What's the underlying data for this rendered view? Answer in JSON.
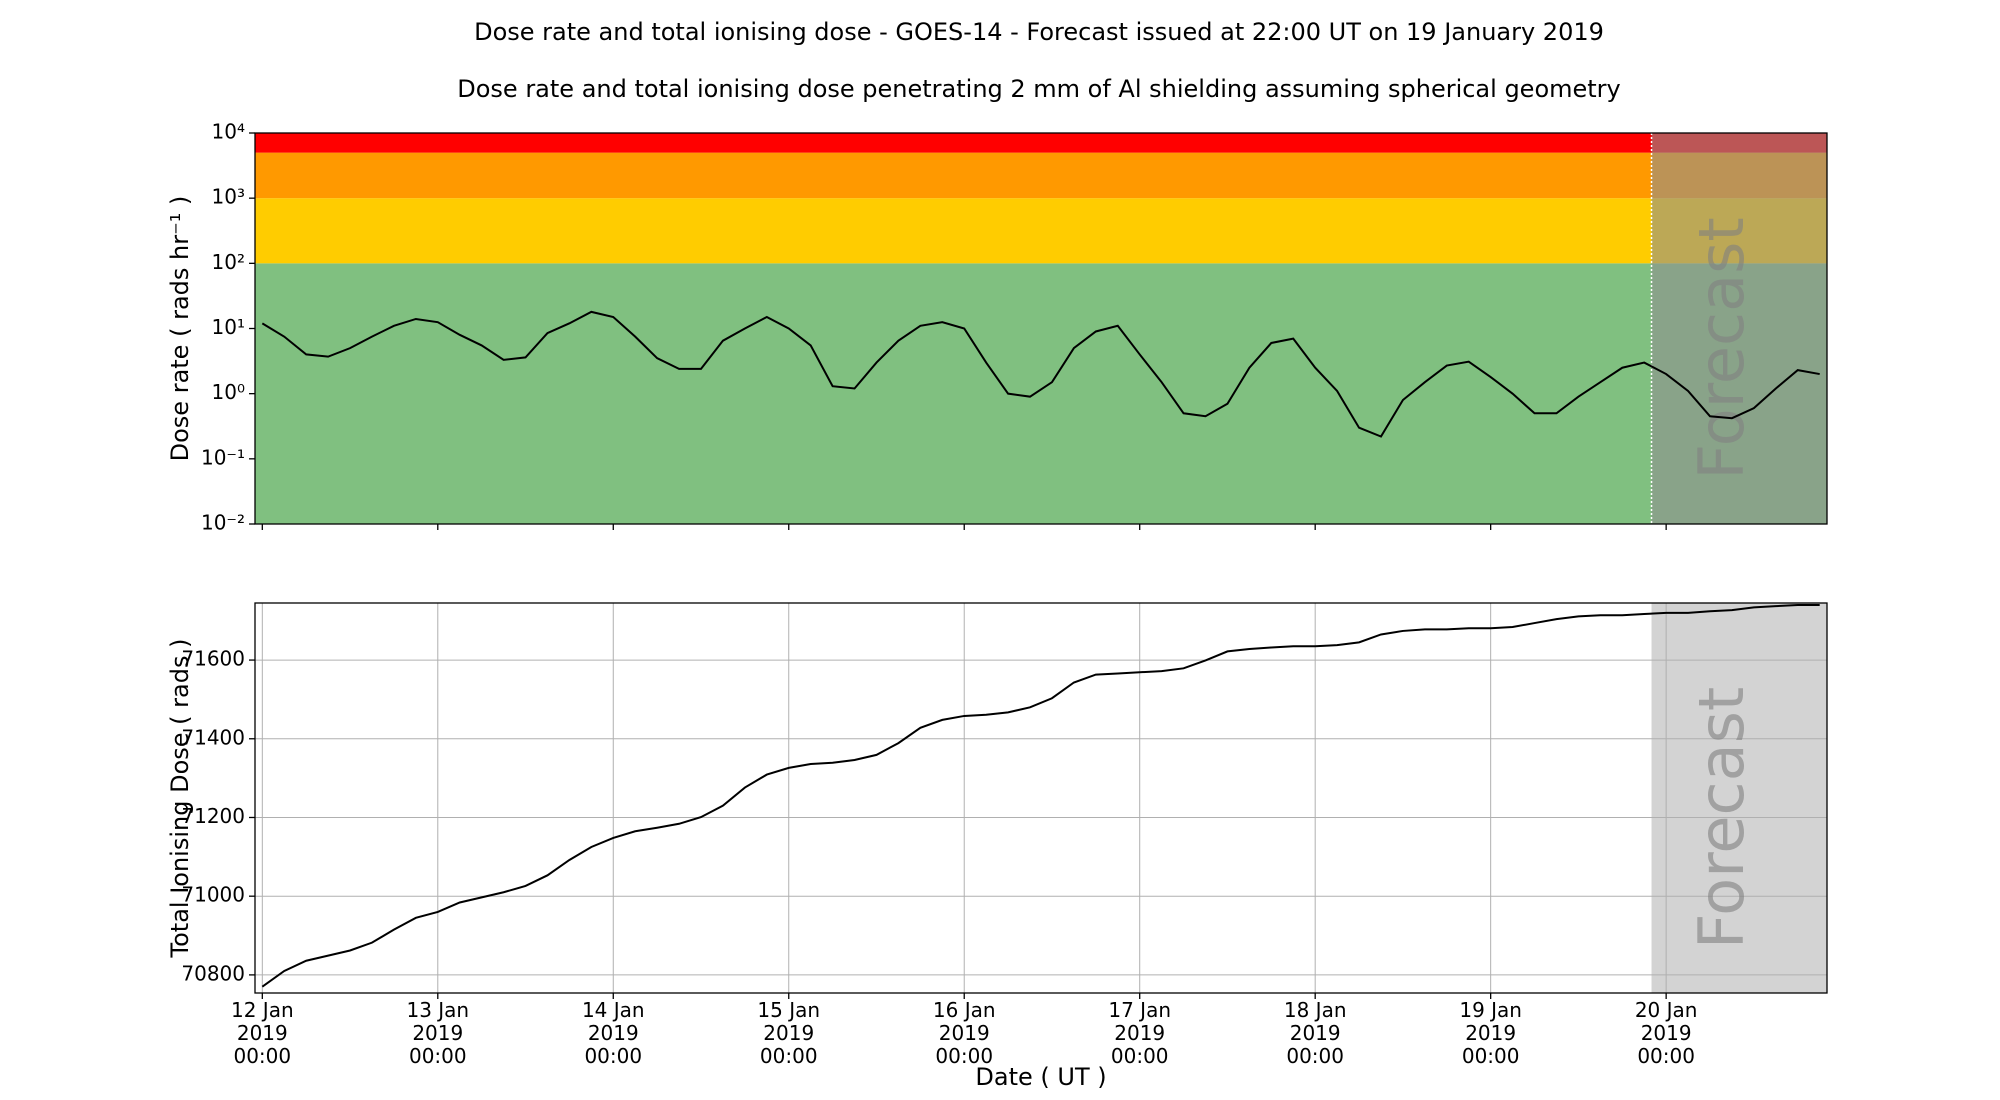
{
  "title": "Dose rate and total ionising dose - GOES-14 - Forecast issued at 22:00 UT on 19 January 2019",
  "subtitle": "Dose rate and total ionising dose penetrating 2 mm of Al shielding assuming spherical geometry",
  "chart_data": [
    {
      "type": "line",
      "y_label": "Dose rate ( rads hr⁻¹ )",
      "log_y": true,
      "color": "#000000",
      "xlim": [
        "2019-01-11T23:00",
        "2019-01-20T22:00"
      ],
      "ylim": [
        0.01,
        10000
      ],
      "yticks": [
        {
          "value": 0.01,
          "label": "10⁻²"
        },
        {
          "value": 0.1,
          "label": "10⁻¹"
        },
        {
          "value": 1,
          "label": "10⁰"
        },
        {
          "value": 10,
          "label": "10¹"
        },
        {
          "value": 100,
          "label": "10²"
        },
        {
          "value": 1000,
          "label": "10³"
        },
        {
          "value": 10000,
          "label": "10⁴"
        }
      ],
      "xticks": [
        "2019-01-12T00:00",
        "2019-01-13T00:00",
        "2019-01-14T00:00",
        "2019-01-15T00:00",
        "2019-01-16T00:00",
        "2019-01-17T00:00",
        "2019-01-18T00:00",
        "2019-01-19T00:00",
        "2019-01-20T00:00"
      ],
      "bands": [
        {
          "from": 0.01,
          "to": 100,
          "color": "#80c080"
        },
        {
          "from": 100,
          "to": 1000,
          "color": "#ffcc00"
        },
        {
          "from": 1000,
          "to": 5000,
          "color": "#ff9900"
        },
        {
          "from": 5000,
          "to": 10000,
          "color": "#ff0000"
        }
      ],
      "forecast": {
        "start": "2019-01-19T22:00",
        "label": "Forecast",
        "color": "#909090"
      },
      "x": [
        "2019-01-12T00:00",
        "2019-01-12T03:00",
        "2019-01-12T06:00",
        "2019-01-12T09:00",
        "2019-01-12T12:00",
        "2019-01-12T15:00",
        "2019-01-12T18:00",
        "2019-01-12T21:00",
        "2019-01-13T00:00",
        "2019-01-13T03:00",
        "2019-01-13T06:00",
        "2019-01-13T09:00",
        "2019-01-13T12:00",
        "2019-01-13T15:00",
        "2019-01-13T18:00",
        "2019-01-13T21:00",
        "2019-01-14T00:00",
        "2019-01-14T03:00",
        "2019-01-14T06:00",
        "2019-01-14T09:00",
        "2019-01-14T12:00",
        "2019-01-14T15:00",
        "2019-01-14T18:00",
        "2019-01-14T21:00",
        "2019-01-15T00:00",
        "2019-01-15T03:00",
        "2019-01-15T06:00",
        "2019-01-15T09:00",
        "2019-01-15T12:00",
        "2019-01-15T15:00",
        "2019-01-15T18:00",
        "2019-01-15T21:00",
        "2019-01-16T00:00",
        "2019-01-16T03:00",
        "2019-01-16T06:00",
        "2019-01-16T09:00",
        "2019-01-16T12:00",
        "2019-01-16T15:00",
        "2019-01-16T18:00",
        "2019-01-16T21:00",
        "2019-01-17T00:00",
        "2019-01-17T03:00",
        "2019-01-17T06:00",
        "2019-01-17T09:00",
        "2019-01-17T12:00",
        "2019-01-17T15:00",
        "2019-01-17T18:00",
        "2019-01-17T21:00",
        "2019-01-18T00:00",
        "2019-01-18T03:00",
        "2019-01-18T06:00",
        "2019-01-18T09:00",
        "2019-01-18T12:00",
        "2019-01-18T15:00",
        "2019-01-18T18:00",
        "2019-01-18T21:00",
        "2019-01-19T00:00",
        "2019-01-19T03:00",
        "2019-01-19T06:00",
        "2019-01-19T09:00",
        "2019-01-19T12:00",
        "2019-01-19T15:00",
        "2019-01-19T18:00",
        "2019-01-19T21:00",
        "2019-01-20T00:00",
        "2019-01-20T03:00",
        "2019-01-20T06:00",
        "2019-01-20T09:00",
        "2019-01-20T12:00",
        "2019-01-20T15:00",
        "2019-01-20T18:00",
        "2019-01-20T21:00"
      ],
      "values": [
        12,
        7.5,
        4,
        3.7,
        5,
        7.5,
        11,
        14,
        12.5,
        8,
        5.5,
        3.3,
        3.6,
        8.5,
        12,
        18,
        15,
        7.5,
        3.5,
        2.4,
        2.4,
        6.5,
        10,
        15,
        10,
        5.5,
        1.3,
        1.2,
        3,
        6.5,
        11,
        12.5,
        10,
        3,
        1.0,
        0.9,
        1.5,
        5,
        9,
        11,
        4,
        1.5,
        0.5,
        0.45,
        0.7,
        2.5,
        6,
        7,
        2.5,
        1.1,
        0.3,
        0.22,
        0.8,
        1.5,
        2.7,
        3.1,
        1.8,
        1.0,
        0.5,
        0.5,
        0.9,
        1.5,
        2.5,
        3,
        2,
        1.1,
        0.45,
        0.42,
        0.6,
        1.2,
        2.3,
        2.0
      ]
    },
    {
      "type": "line",
      "y_label": "Total Ionising Dose ( rads )",
      "x_label": "Date ( UT )",
      "grid": true,
      "color": "#000000",
      "xlim": [
        "2019-01-11T23:00",
        "2019-01-20T22:00"
      ],
      "ylim": [
        70754,
        71745
      ],
      "yticks": [
        70800,
        71000,
        71200,
        71400,
        71600
      ],
      "xticks": [
        {
          "value": "2019-01-12T00:00",
          "label": [
            "12 Jan",
            "2019",
            "00:00"
          ]
        },
        {
          "value": "2019-01-13T00:00",
          "label": [
            "13 Jan",
            "2019",
            "00:00"
          ]
        },
        {
          "value": "2019-01-14T00:00",
          "label": [
            "14 Jan",
            "2019",
            "00:00"
          ]
        },
        {
          "value": "2019-01-15T00:00",
          "label": [
            "15 Jan",
            "2019",
            "00:00"
          ]
        },
        {
          "value": "2019-01-16T00:00",
          "label": [
            "16 Jan",
            "2019",
            "00:00"
          ]
        },
        {
          "value": "2019-01-17T00:00",
          "label": [
            "17 Jan",
            "2019",
            "00:00"
          ]
        },
        {
          "value": "2019-01-18T00:00",
          "label": [
            "18 Jan",
            "2019",
            "00:00"
          ]
        },
        {
          "value": "2019-01-19T00:00",
          "label": [
            "19 Jan",
            "2019",
            "00:00"
          ]
        },
        {
          "value": "2019-01-20T00:00",
          "label": [
            "20 Jan",
            "2019",
            "00:00"
          ]
        }
      ],
      "forecast": {
        "start": "2019-01-19T22:00",
        "label": "Forecast",
        "color": "#d3d3d3"
      },
      "x": [
        "2019-01-12T00:00",
        "2019-01-12T03:00",
        "2019-01-12T06:00",
        "2019-01-12T09:00",
        "2019-01-12T12:00",
        "2019-01-12T15:00",
        "2019-01-12T18:00",
        "2019-01-12T21:00",
        "2019-01-13T00:00",
        "2019-01-13T03:00",
        "2019-01-13T06:00",
        "2019-01-13T09:00",
        "2019-01-13T12:00",
        "2019-01-13T15:00",
        "2019-01-13T18:00",
        "2019-01-13T21:00",
        "2019-01-14T00:00",
        "2019-01-14T03:00",
        "2019-01-14T06:00",
        "2019-01-14T09:00",
        "2019-01-14T12:00",
        "2019-01-14T15:00",
        "2019-01-14T18:00",
        "2019-01-14T21:00",
        "2019-01-15T00:00",
        "2019-01-15T03:00",
        "2019-01-15T06:00",
        "2019-01-15T09:00",
        "2019-01-15T12:00",
        "2019-01-15T15:00",
        "2019-01-15T18:00",
        "2019-01-15T21:00",
        "2019-01-16T00:00",
        "2019-01-16T03:00",
        "2019-01-16T06:00",
        "2019-01-16T09:00",
        "2019-01-16T12:00",
        "2019-01-16T15:00",
        "2019-01-16T18:00",
        "2019-01-16T21:00",
        "2019-01-17T00:00",
        "2019-01-17T03:00",
        "2019-01-17T06:00",
        "2019-01-17T09:00",
        "2019-01-17T12:00",
        "2019-01-17T15:00",
        "2019-01-17T18:00",
        "2019-01-17T21:00",
        "2019-01-18T00:00",
        "2019-01-18T03:00",
        "2019-01-18T06:00",
        "2019-01-18T09:00",
        "2019-01-18T12:00",
        "2019-01-18T15:00",
        "2019-01-18T18:00",
        "2019-01-18T21:00",
        "2019-01-19T00:00",
        "2019-01-19T03:00",
        "2019-01-19T06:00",
        "2019-01-19T09:00",
        "2019-01-19T12:00",
        "2019-01-19T15:00",
        "2019-01-19T18:00",
        "2019-01-19T21:00",
        "2019-01-20T00:00",
        "2019-01-20T03:00",
        "2019-01-20T06:00",
        "2019-01-20T09:00",
        "2019-01-20T12:00",
        "2019-01-20T15:00",
        "2019-01-20T18:00",
        "2019-01-20T21:00"
      ],
      "values": [
        70770,
        70810,
        70836,
        70849,
        70862,
        70882,
        70915,
        70945,
        70960,
        70984,
        70997,
        71010,
        71026,
        71053,
        71092,
        71125,
        71148,
        71165,
        71174,
        71184,
        71201,
        71230,
        71276,
        71309,
        71326,
        71336,
        71339,
        71346,
        71359,
        71389,
        71428,
        71448,
        71458,
        71461,
        71467,
        71480,
        71503,
        71543,
        71563,
        71566,
        71569,
        71572,
        71579,
        71599,
        71622,
        71628,
        71632,
        71635,
        71635,
        71638,
        71645,
        71665,
        71674,
        71678,
        71678,
        71681,
        71681,
        71684,
        71694,
        71704,
        71711,
        71714,
        71714,
        71717,
        71720,
        71720,
        71724,
        71727,
        71734,
        71737,
        71740,
        71740
      ]
    }
  ]
}
